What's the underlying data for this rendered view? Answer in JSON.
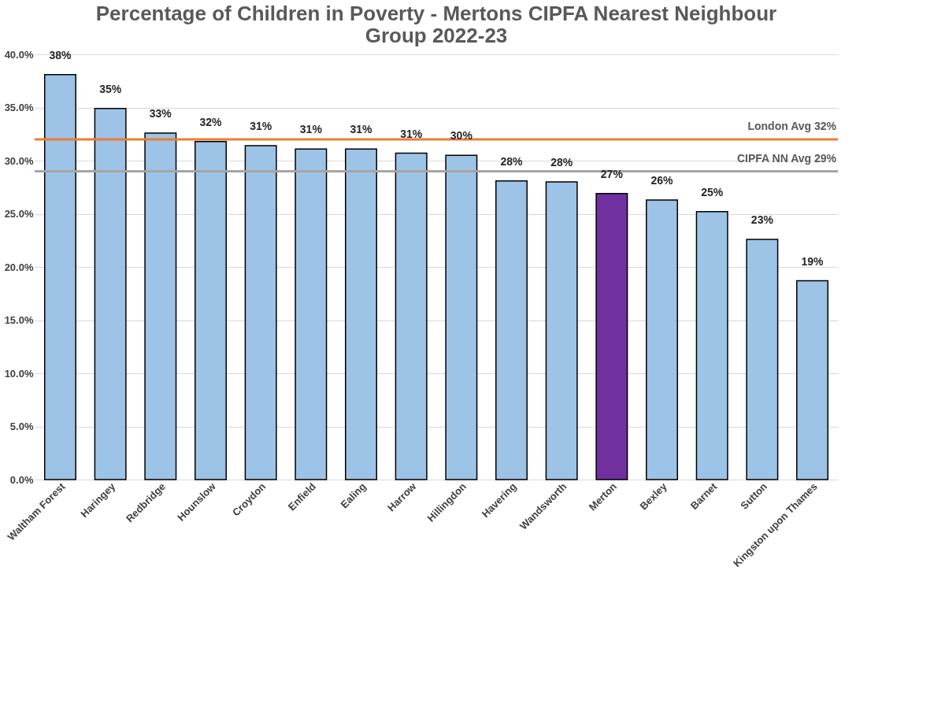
{
  "chart_data": {
    "type": "bar",
    "title": "Percentage of Children in Poverty - Mertons CIPFA Nearest Neighbour Group 2022-23",
    "categories": [
      "Waltham Forest",
      "Haringey",
      "Redbridge",
      "Hounslow",
      "Croydon",
      "Enfield",
      "Ealing",
      "Harrow",
      "Hillingdon",
      "Havering",
      "Wandsworth",
      "Merton",
      "Bexley",
      "Barnet",
      "Sutton",
      "Kingston upon Thames"
    ],
    "values": [
      38.1,
      34.9,
      32.6,
      31.8,
      31.4,
      31.1,
      31.1,
      30.7,
      30.5,
      28.1,
      28.0,
      26.9,
      26.3,
      25.2,
      22.6,
      18.7
    ],
    "value_labels": [
      "38%",
      "35%",
      "33%",
      "32%",
      "31%",
      "31%",
      "31%",
      "31%",
      "30%",
      "28%",
      "28%",
      "27%",
      "26%",
      "25%",
      "23%",
      "19%"
    ],
    "colors": [
      "#9dc3e6",
      "#9dc3e6",
      "#9dc3e6",
      "#9dc3e6",
      "#9dc3e6",
      "#9dc3e6",
      "#9dc3e6",
      "#9dc3e6",
      "#9dc3e6",
      "#9dc3e6",
      "#9dc3e6",
      "#7030a0",
      "#9dc3e6",
      "#9dc3e6",
      "#9dc3e6",
      "#9dc3e6"
    ],
    "ylim": [
      0,
      40
    ],
    "yticks": [
      {
        "value": 0,
        "label": "0.0%"
      },
      {
        "value": 5,
        "label": "5.0%"
      },
      {
        "value": 10,
        "label": "10.0%"
      },
      {
        "value": 15,
        "label": "15.0%"
      },
      {
        "value": 20,
        "label": "20.0%"
      },
      {
        "value": 25,
        "label": "25.0%"
      },
      {
        "value": 30,
        "label": "30.0%"
      },
      {
        "value": 35,
        "label": "35.0%"
      },
      {
        "value": 40,
        "label": "40.0%"
      }
    ],
    "ref_lines": [
      {
        "axis": "y",
        "value": 32,
        "label": "London Avg 32%",
        "color": "#ed7d31"
      },
      {
        "axis": "y",
        "value": 29,
        "label": "CIPFA NN Avg 29%",
        "color": "#a5a5a5"
      }
    ],
    "grid": "y"
  }
}
